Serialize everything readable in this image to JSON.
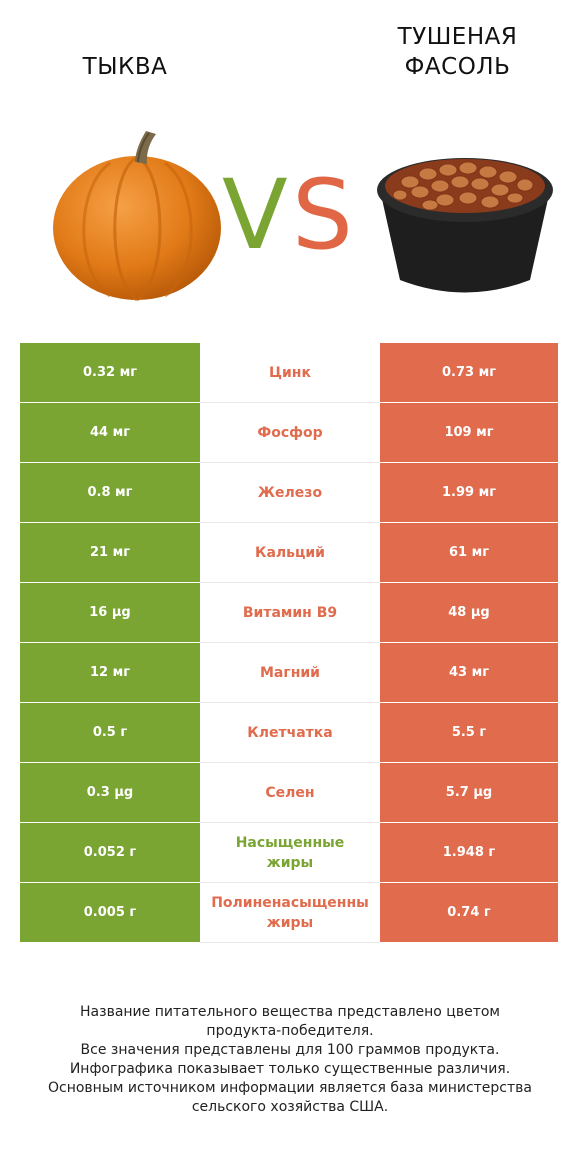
{
  "header": {
    "left_title": "ТЫКВА",
    "right_title_line1": "ТУШЕНАЯ",
    "right_title_line2": "ФАСОЛЬ",
    "vs_v": "V",
    "vs_s": "S"
  },
  "colors": {
    "left": "#7aa533",
    "right": "#e06b4d"
  },
  "rows": [
    {
      "left": "0.32 мг",
      "nutrient": "Цинк",
      "right": "0.73 мг",
      "winner": "right"
    },
    {
      "left": "44 мг",
      "nutrient": "Фосфор",
      "right": "109 мг",
      "winner": "right"
    },
    {
      "left": "0.8 мг",
      "nutrient": "Железо",
      "right": "1.99 мг",
      "winner": "right"
    },
    {
      "left": "21 мг",
      "nutrient": "Кальций",
      "right": "61 мг",
      "winner": "right"
    },
    {
      "left": "16 µg",
      "nutrient": "Витамин B9",
      "right": "48 µg",
      "winner": "right"
    },
    {
      "left": "12 мг",
      "nutrient": "Магний",
      "right": "43 мг",
      "winner": "right"
    },
    {
      "left": "0.5 г",
      "nutrient": "Клетчатка",
      "right": "5.5 г",
      "winner": "right"
    },
    {
      "left": "0.3 µg",
      "nutrient": "Селен",
      "right": "5.7 µg",
      "winner": "right"
    },
    {
      "left": "0.052 г",
      "nutrient_line1": "Насыщенные",
      "nutrient_line2": "жиры",
      "right": "1.948 г",
      "winner": "left"
    },
    {
      "left": "0.005 г",
      "nutrient_line1": "Полиненасыщенны",
      "nutrient_line2": "жиры",
      "right": "0.74 г",
      "winner": "right"
    }
  ],
  "footer": {
    "line1": "Название питательного вещества представлено цветом",
    "line2": "продукта-победителя.",
    "line3": "Все значения представлены для 100 граммов продукта.",
    "line4": "Инфографика показывает только существенные различия.",
    "line5": "Основным источником информации является база министерства",
    "line6": "сельского хозяйства США."
  }
}
